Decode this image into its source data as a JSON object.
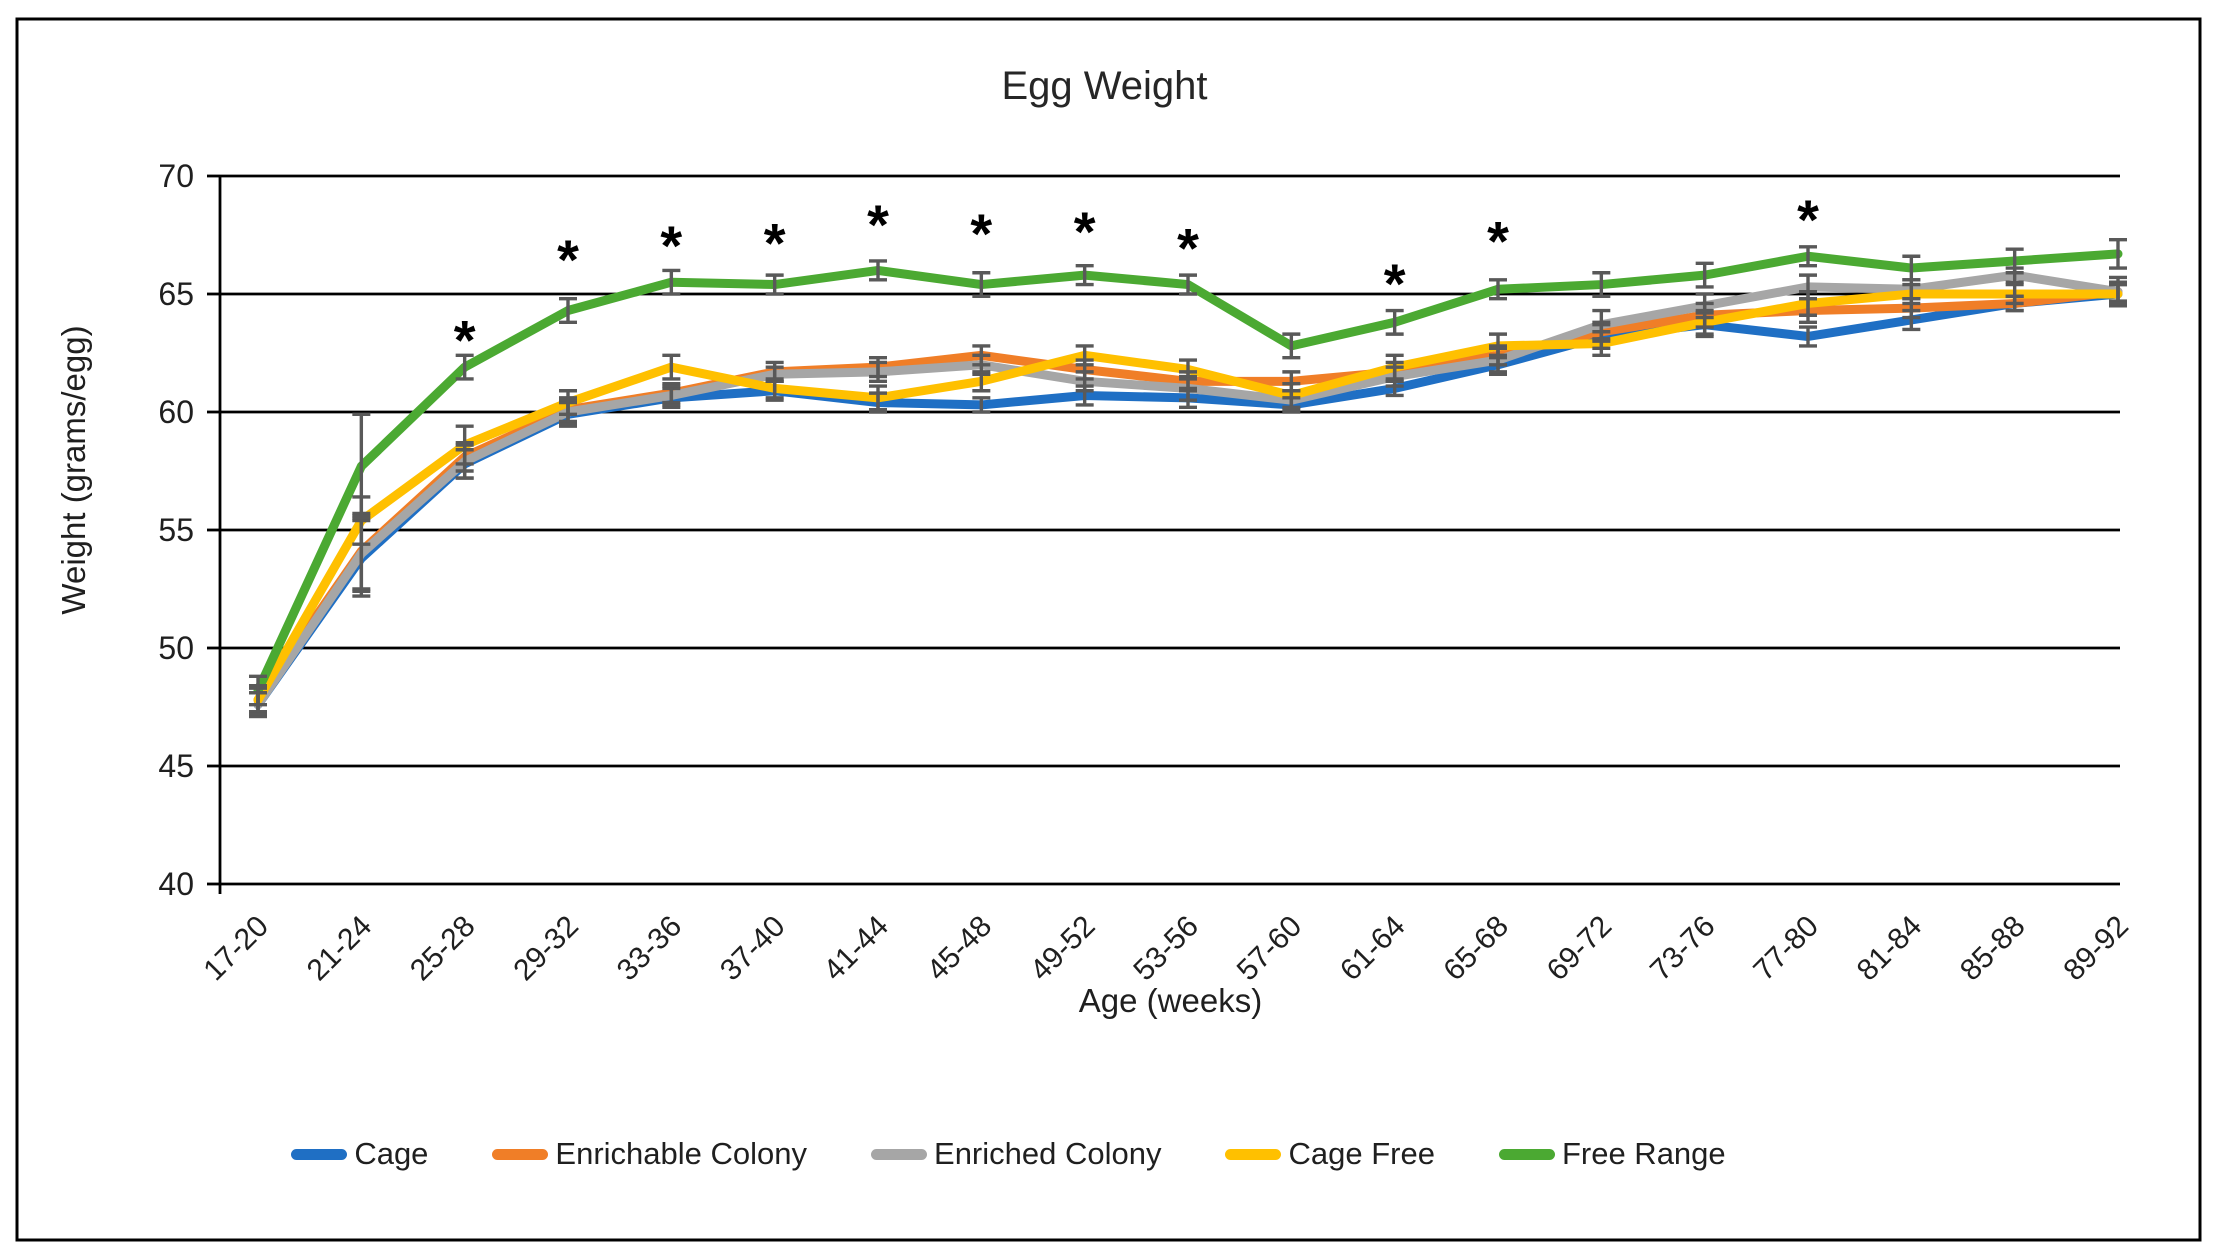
{
  "page": {
    "background": "#ffffff",
    "frame_color": "#000000",
    "text_color": "#1f1f1f",
    "error_bar_color": "#595959"
  },
  "chart_data": {
    "type": "line",
    "title": "Egg Weight",
    "xlabel": "Age (weeks)",
    "ylabel": "Weight (grams/egg)",
    "ylim": [
      40,
      70
    ],
    "y_ticks": [
      40,
      45,
      50,
      55,
      60,
      65,
      70
    ],
    "grid": true,
    "legend_position": "bottom",
    "categories": [
      "17-20",
      "21-24",
      "25-28",
      "29-32",
      "33-36",
      "37-40",
      "41-44",
      "45-48",
      "49-52",
      "53-56",
      "57-60",
      "61-64",
      "65-68",
      "69-72",
      "73-76",
      "77-80",
      "81-84",
      "85-88",
      "89-92"
    ],
    "series": [
      {
        "name": "Cage",
        "color": "#1f6fc4",
        "values": [
          47.6,
          53.8,
          57.8,
          59.9,
          60.6,
          60.9,
          60.4,
          60.3,
          60.7,
          60.6,
          60.3,
          61.0,
          62.0,
          63.2,
          63.7,
          63.2,
          63.9,
          64.6,
          65.0
        ],
        "errors": [
          0.5,
          1.6,
          0.6,
          0.5,
          0.4,
          0.4,
          0.4,
          0.3,
          0.4,
          0.4,
          0.3,
          0.3,
          0.4,
          0.5,
          0.5,
          0.4,
          0.4,
          0.3,
          0.4
        ]
      },
      {
        "name": "Enrichable Colony",
        "color": "#f07e27",
        "values": [
          47.8,
          54.1,
          58.1,
          60.1,
          60.8,
          61.7,
          61.9,
          62.4,
          61.8,
          61.3,
          61.3,
          61.7,
          62.4,
          63.4,
          64.1,
          64.3,
          64.4,
          64.6,
          65.1
        ],
        "errors": [
          0.5,
          1.6,
          0.6,
          0.5,
          0.4,
          0.4,
          0.4,
          0.4,
          0.4,
          0.4,
          0.4,
          0.4,
          0.4,
          0.4,
          0.5,
          0.5,
          0.4,
          0.3,
          0.4
        ]
      },
      {
        "name": "Enriched Colony",
        "color": "#a6a6a6",
        "values": [
          47.6,
          54.0,
          57.9,
          60.0,
          60.7,
          61.6,
          61.7,
          62.0,
          61.3,
          61.0,
          60.5,
          61.5,
          62.2,
          63.7,
          64.5,
          65.3,
          65.2,
          65.8,
          65.1
        ],
        "errors": [
          0.5,
          1.6,
          0.7,
          0.5,
          0.4,
          0.3,
          0.4,
          0.4,
          0.4,
          0.5,
          0.4,
          0.4,
          0.5,
          0.6,
          0.5,
          0.5,
          0.4,
          0.3,
          0.6
        ]
      },
      {
        "name": "Cage Free",
        "color": "#ffc000",
        "values": [
          47.8,
          55.4,
          58.6,
          60.4,
          61.9,
          61.0,
          60.6,
          61.3,
          62.4,
          61.8,
          60.7,
          61.9,
          62.8,
          62.9,
          63.8,
          64.6,
          65.0,
          65.0,
          65.0
        ],
        "errors": [
          0.6,
          1.0,
          0.8,
          0.5,
          0.5,
          0.4,
          0.5,
          0.4,
          0.4,
          0.4,
          0.5,
          0.5,
          0.5,
          0.5,
          0.5,
          0.5,
          0.4,
          0.4,
          0.4
        ]
      },
      {
        "name": "Free Range",
        "color": "#4ba932",
        "values": [
          48.2,
          57.7,
          61.9,
          64.3,
          65.5,
          65.4,
          66.0,
          65.4,
          65.8,
          65.4,
          62.8,
          63.8,
          65.2,
          65.4,
          65.8,
          66.6,
          66.1,
          66.4,
          66.7
        ],
        "errors": [
          0.6,
          2.2,
          0.5,
          0.5,
          0.5,
          0.4,
          0.4,
          0.5,
          0.4,
          0.4,
          0.5,
          0.5,
          0.4,
          0.5,
          0.5,
          0.4,
          0.5,
          0.5,
          0.6
        ]
      }
    ],
    "annotations": [
      {
        "marker": "*",
        "category": "25-28",
        "y": 63.5
      },
      {
        "marker": "*",
        "category": "29-32",
        "y": 66.9
      },
      {
        "marker": "*",
        "category": "33-36",
        "y": 67.5
      },
      {
        "marker": "*",
        "category": "37-40",
        "y": 67.6
      },
      {
        "marker": "*",
        "category": "41-44",
        "y": 68.4
      },
      {
        "marker": "*",
        "category": "45-48",
        "y": 68.0
      },
      {
        "marker": "*",
        "category": "49-52",
        "y": 68.1
      },
      {
        "marker": "*",
        "category": "53-56",
        "y": 67.4
      },
      {
        "marker": "*",
        "category": "61-64",
        "y": 65.9
      },
      {
        "marker": "*",
        "category": "65-68",
        "y": 67.7
      },
      {
        "marker": "*",
        "category": "77-80",
        "y": 68.6
      }
    ]
  }
}
